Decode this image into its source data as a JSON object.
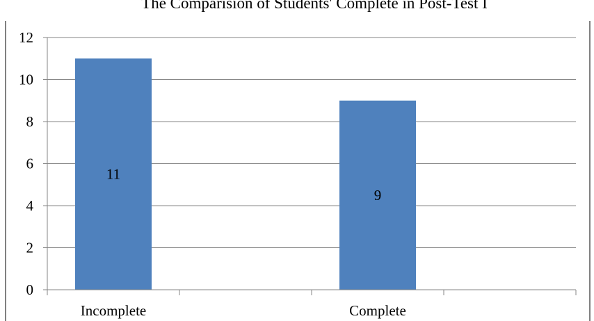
{
  "chart_data": {
    "type": "bar",
    "title": "The Comparision of Students' Complete in Post-Test I",
    "categories": [
      "Incomplete",
      "Complete"
    ],
    "values": [
      11,
      9
    ],
    "data_labels": [
      "11",
      "9"
    ],
    "xlabel": "",
    "ylabel": "",
    "ylim": [
      0,
      12
    ],
    "yticks": [
      0,
      2,
      4,
      6,
      8,
      10,
      12
    ],
    "grid": true,
    "legend": "none",
    "bar_color": "#4f81bd"
  }
}
